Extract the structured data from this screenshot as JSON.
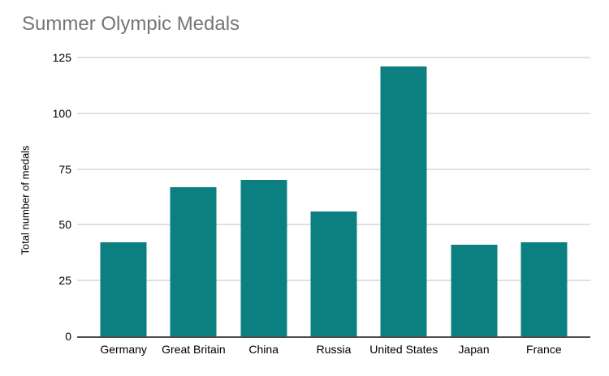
{
  "chart_data": {
    "type": "bar",
    "title": "Summer Olympic Medals",
    "categories": [
      "Germany",
      "Great Britain",
      "China",
      "Russia",
      "United States",
      "Japan",
      "France"
    ],
    "values": [
      42,
      67,
      70,
      56,
      121,
      41,
      42
    ],
    "xlabel": "",
    "ylabel": "Total number of medals",
    "ylim": [
      0,
      125
    ],
    "yticks": [
      0,
      25,
      50,
      75,
      100,
      125
    ],
    "grid": "horizontal",
    "legend": "none",
    "colors": {
      "bar": "#0c7f80",
      "title_text": "#757575",
      "axis_text": "#000000",
      "gridline": "#e0e0e0",
      "baseline": "#4d4d4d",
      "background": "#ffffff"
    }
  }
}
